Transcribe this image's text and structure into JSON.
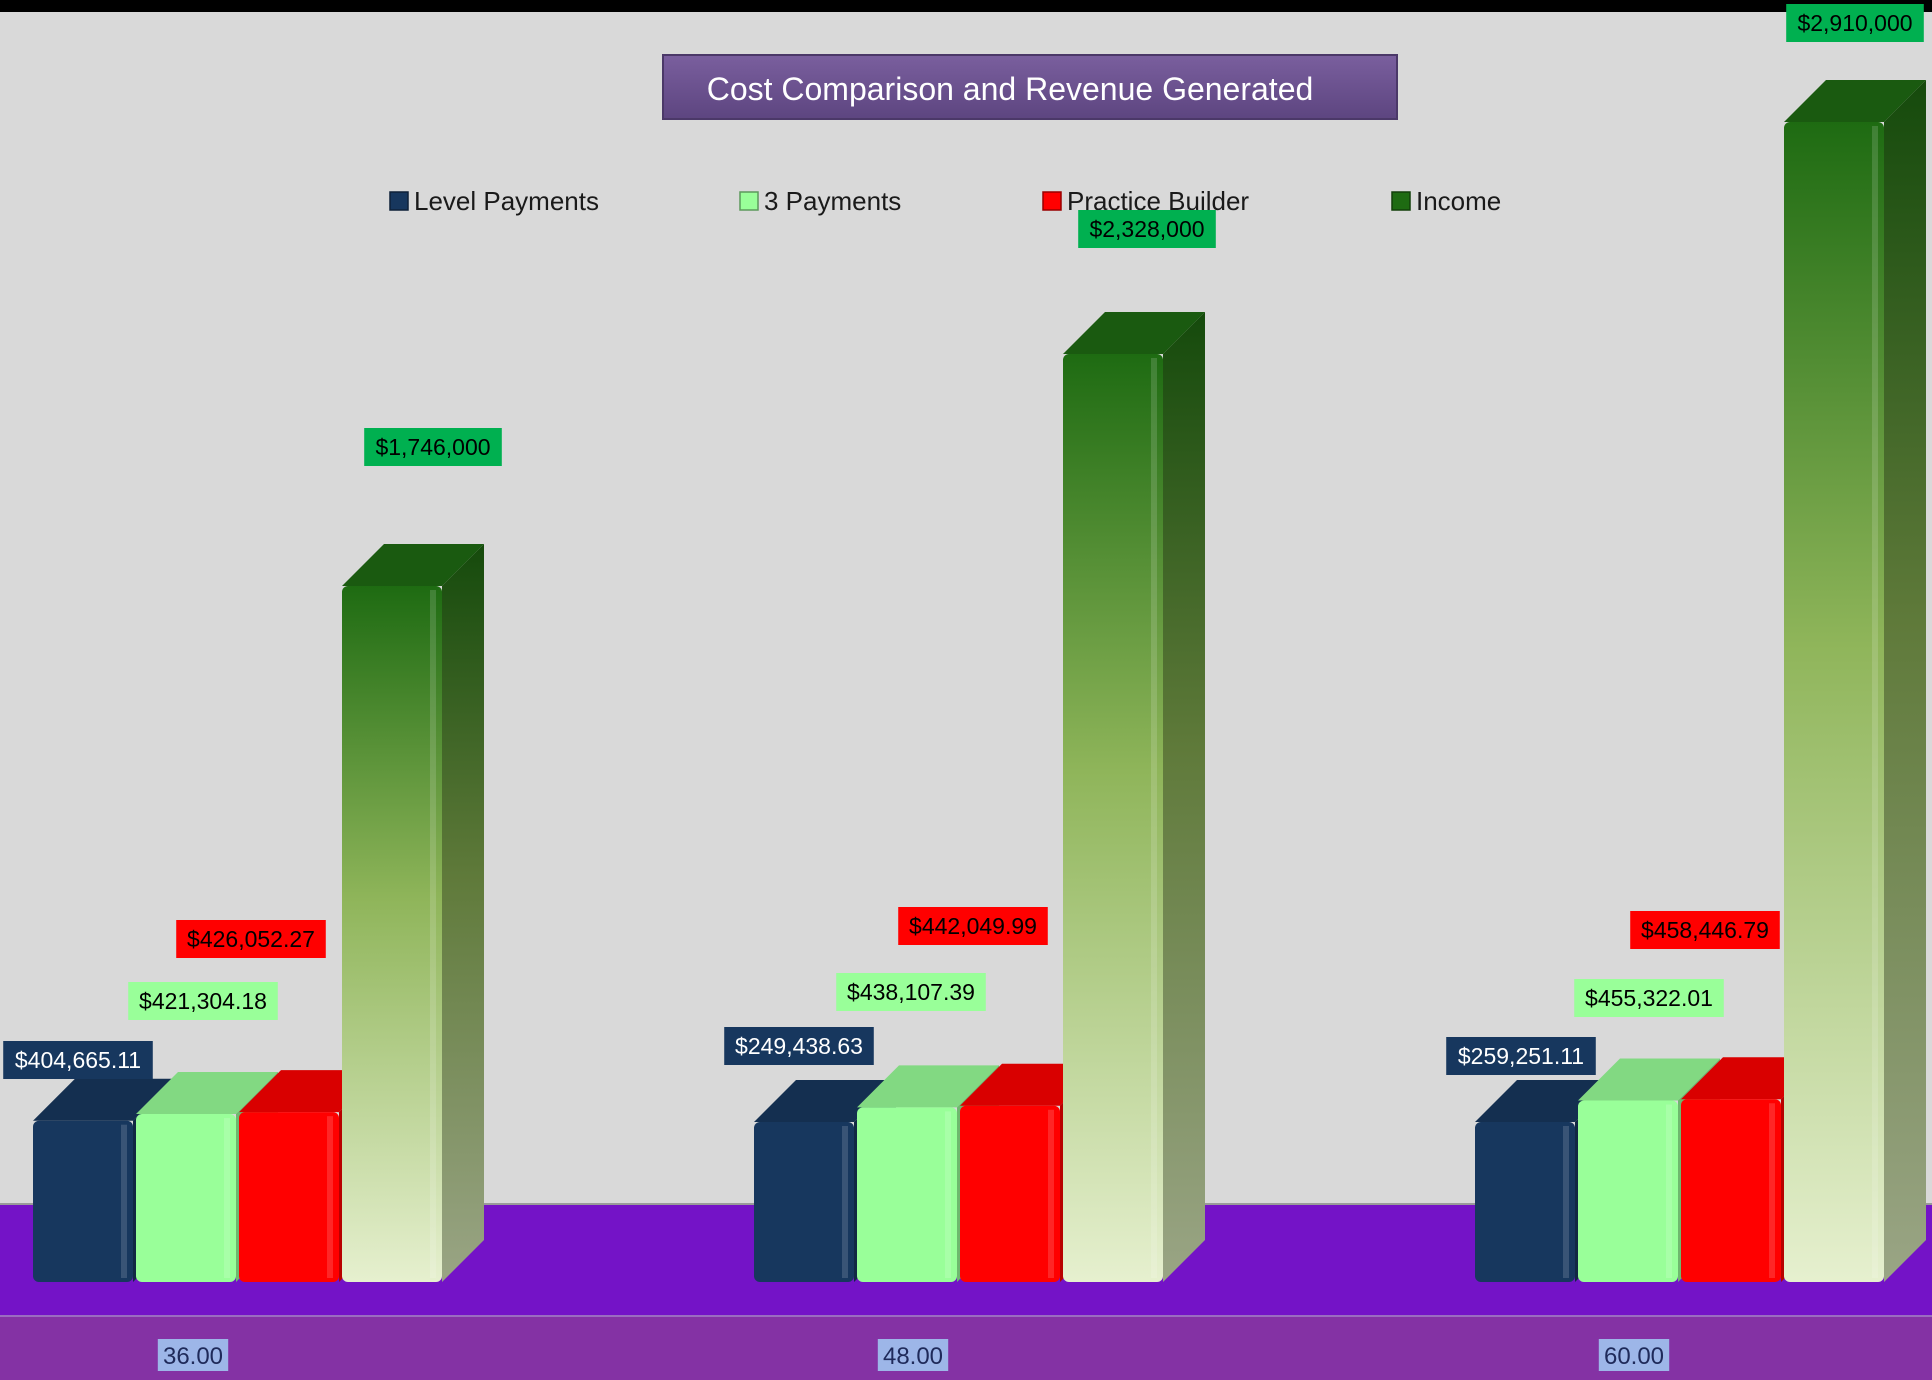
{
  "chart_data": {
    "type": "bar",
    "title": "Cost Comparison and Revenue Generated",
    "categories": [
      "36.00",
      "48.00",
      "60.00"
    ],
    "series": [
      {
        "name": "Level Payments",
        "values": [
          404665.11,
          249438.63,
          259251.11
        ],
        "labels": [
          "$404,665.11",
          "$249,438.63",
          "$259,251.11"
        ],
        "color": "#17375e",
        "label_bg": "#17375e",
        "label_fg": "#ffffff"
      },
      {
        "name": "3 Payments",
        "values": [
          421304.18,
          438107.39,
          455322.01
        ],
        "labels": [
          "$421,304.18",
          "$438,107.39",
          "$455,322.01"
        ],
        "color": "#99ff99",
        "label_bg": "#99ff99",
        "label_fg": "#000000"
      },
      {
        "name": "Practice Builder",
        "values": [
          426052.27,
          442049.99,
          458446.79
        ],
        "labels": [
          "$426,052.27",
          "$442,049.99",
          "$458,446.79"
        ],
        "color": "#ff0000",
        "label_bg": "#ff0000",
        "label_fg": "#000000"
      },
      {
        "name": "Income",
        "values": [
          1746000,
          2328000,
          2910000
        ],
        "labels": [
          "$1,746,000",
          "$2,328,000",
          "$2,910,000"
        ],
        "color": "#1e6b12",
        "label_bg": "#00b050",
        "label_fg": "#000000"
      }
    ],
    "legend_position": "top",
    "grid": false,
    "colors": {
      "background": "#d9d9d9",
      "floor": "#7413c7",
      "axis_band": "#8432a4",
      "title_bg": "#6a4f8c",
      "tick_bg": "#9db6e8"
    }
  }
}
